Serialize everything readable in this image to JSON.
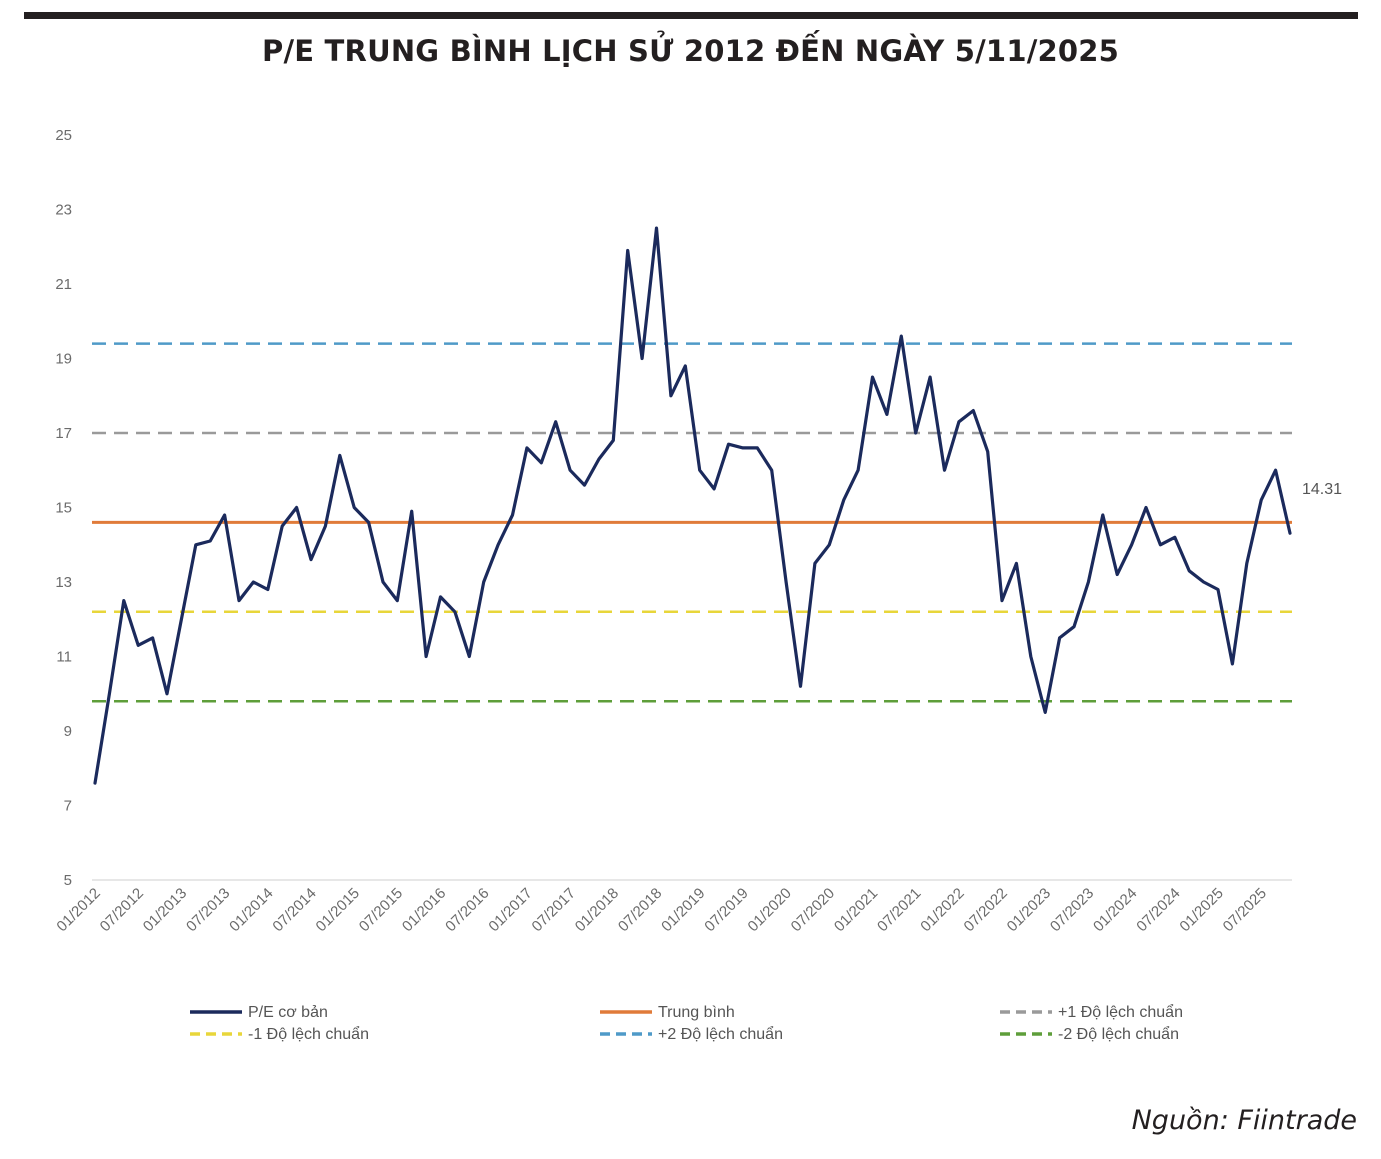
{
  "title": "P/E TRUNG BÌNH LỊCH SỬ 2012 ĐẾN NGÀY 5/11/2025",
  "source": "Nguồn: Fiintrade",
  "chart_data": {
    "type": "line",
    "ylim": [
      5,
      25
    ],
    "yticks": [
      "5",
      "7",
      "9",
      "11",
      "13",
      "15",
      "17",
      "19",
      "21",
      "23",
      "25"
    ],
    "xticks": [
      "01/2012",
      "07/2012",
      "01/2013",
      "07/2013",
      "01/2014",
      "07/2014",
      "01/2015",
      "07/2015",
      "01/2016",
      "07/2016",
      "01/2017",
      "07/2017",
      "01/2018",
      "07/2018",
      "01/2019",
      "07/2019",
      "01/2020",
      "07/2020",
      "01/2021",
      "07/2021",
      "01/2022",
      "07/2022",
      "01/2023",
      "07/2023",
      "01/2024",
      "07/2024",
      "01/2025",
      "07/2025"
    ],
    "grid": false,
    "legend_position": "bottom",
    "last_value_label": "14.31",
    "series": [
      {
        "name": "P/E cơ bản",
        "color": "#1b2a5c",
        "style": "solid",
        "x": [
          "01/2012",
          "03/2012",
          "05/2012",
          "07/2012",
          "09/2012",
          "11/2012",
          "01/2013",
          "03/2013",
          "05/2013",
          "07/2013",
          "09/2013",
          "11/2013",
          "01/2014",
          "03/2014",
          "05/2014",
          "07/2014",
          "09/2014",
          "11/2014",
          "01/2015",
          "03/2015",
          "05/2015",
          "07/2015",
          "09/2015",
          "11/2015",
          "01/2016",
          "03/2016",
          "05/2016",
          "07/2016",
          "09/2016",
          "11/2016",
          "01/2017",
          "03/2017",
          "05/2017",
          "07/2017",
          "09/2017",
          "11/2017",
          "01/2018",
          "03/2018",
          "05/2018",
          "07/2018",
          "09/2018",
          "11/2018",
          "01/2019",
          "03/2019",
          "05/2019",
          "07/2019",
          "09/2019",
          "11/2019",
          "01/2020",
          "03/2020",
          "05/2020",
          "07/2020",
          "09/2020",
          "11/2020",
          "01/2021",
          "03/2021",
          "05/2021",
          "07/2021",
          "09/2021",
          "11/2021",
          "01/2022",
          "03/2022",
          "05/2022",
          "07/2022",
          "09/2022",
          "11/2022",
          "01/2023",
          "03/2023",
          "05/2023",
          "07/2023",
          "09/2023",
          "11/2023",
          "01/2024",
          "03/2024",
          "05/2024",
          "07/2024",
          "09/2024",
          "11/2024",
          "01/2025",
          "03/2025",
          "05/2025",
          "07/2025",
          "09/2025",
          "11/2025"
        ],
        "values": [
          7.6,
          10.0,
          12.5,
          11.3,
          11.5,
          10.0,
          12.0,
          14.0,
          14.1,
          14.8,
          12.5,
          13.0,
          12.8,
          14.5,
          15.0,
          13.6,
          14.5,
          16.4,
          15.0,
          14.6,
          13.0,
          12.5,
          14.9,
          11.0,
          12.6,
          12.2,
          11.0,
          13.0,
          14.0,
          14.8,
          16.6,
          16.2,
          17.3,
          16.0,
          15.6,
          16.3,
          16.8,
          21.9,
          19.0,
          22.5,
          18.0,
          18.8,
          16.0,
          15.5,
          16.7,
          16.6,
          16.6,
          16.0,
          13.0,
          10.2,
          13.5,
          14.0,
          15.2,
          16.0,
          18.5,
          17.5,
          19.6,
          17.0,
          18.5,
          16.0,
          17.3,
          17.6,
          16.5,
          12.5,
          13.5,
          11.0,
          9.5,
          11.5,
          11.8,
          13.0,
          14.8,
          13.2,
          14.0,
          15.0,
          14.0,
          14.2,
          13.3,
          13.0,
          12.8,
          10.8,
          13.5,
          15.2,
          16.0,
          14.31
        ]
      },
      {
        "name": "Trung bình",
        "color": "#e07b3a",
        "style": "solid",
        "value": 14.6
      },
      {
        "name": "+1 Độ lệch chuẩn",
        "color": "#9a9a9a",
        "style": "dashed",
        "value": 17.0
      },
      {
        "name": "-1 Độ lệch chuẩn",
        "color": "#e8d63a",
        "style": "dashed",
        "value": 12.2
      },
      {
        "name": "+2 Độ lệch chuẩn",
        "color": "#4f9ac8",
        "style": "dashed",
        "value": 19.4
      },
      {
        "name": "-2 Độ lệch chuẩn",
        "color": "#5e9e3a",
        "style": "dashed",
        "value": 9.8
      }
    ]
  }
}
